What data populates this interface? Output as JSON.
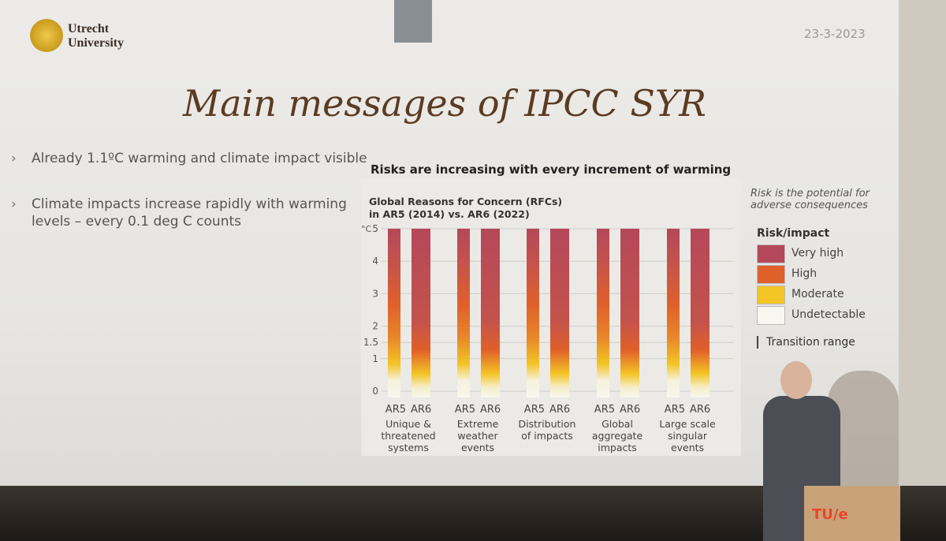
{
  "header": {
    "university": [
      "Utrecht",
      "University"
    ],
    "date": "23-3-2023",
    "title": "Main messages of IPCC SYR"
  },
  "bullets": [
    "Already 1.1ºC warming and climate impact visible",
    "Climate impacts increase rapidly with warming levels – every 0.1 deg C counts"
  ],
  "figure": {
    "heading": "Risks are increasing with every increment of warming",
    "chart_title": "Global Reasons for Concern (RFCs) in AR5 (2014) vs. AR6 (2022)",
    "y_unit": "°C",
    "ylim": [
      0,
      5
    ],
    "yticks": [
      0,
      1,
      1.5,
      2,
      3,
      4,
      5
    ],
    "groups": [
      {
        "reports": [
          "AR5",
          "AR6"
        ],
        "name": "Unique & threatened systems"
      },
      {
        "reports": [
          "AR5",
          "AR6"
        ],
        "name": "Extreme weather events"
      },
      {
        "reports": [
          "AR5",
          "AR6"
        ],
        "name": "Distribution of impacts"
      },
      {
        "reports": [
          "AR5",
          "AR6"
        ],
        "name": "Global aggregate impacts"
      },
      {
        "reports": [
          "AR5",
          "AR6"
        ],
        "name": "Large scale singular events"
      }
    ],
    "legend": {
      "note": "Risk is the potential for adverse consequences",
      "title": "Risk/impact",
      "items": [
        {
          "name": "Very high",
          "color": "#b5485a"
        },
        {
          "name": "High",
          "color": "#e0602a"
        },
        {
          "name": "Moderate",
          "color": "#f3c425"
        },
        {
          "name": "Undetectable",
          "color": "#f7f6f0"
        }
      ],
      "transition": "Transition range"
    }
  },
  "podium": "TU/e"
}
